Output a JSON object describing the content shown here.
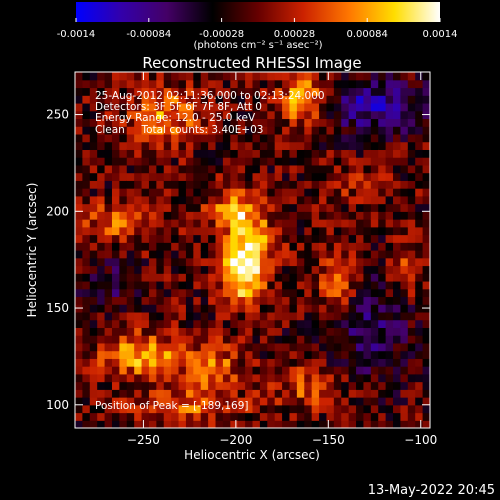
{
  "chart_data": {
    "type": "heatmap",
    "title": "Reconstructed RHESSI Image",
    "colorbar": {
      "ticks": [
        "-0.0014",
        "-0.00084",
        "-0.00028",
        "0.00028",
        "0.00084",
        "0.0014"
      ],
      "tick_values": [
        -0.0014,
        -0.00084,
        -0.00028,
        0.00028,
        0.00084,
        0.0014
      ],
      "range": [
        -0.0014,
        0.0014
      ],
      "unit_label": "(photons cm⁻² s⁻¹ asec⁻²)",
      "colors": [
        "#0000ff",
        "#3300aa",
        "#440066",
        "#000000",
        "#660000",
        "#cc2200",
        "#ff7700",
        "#ffdd00",
        "#ffffff"
      ]
    },
    "xlabel": "Heliocentric X (arcsec)",
    "ylabel": "Heliocentric Y (arcsec)",
    "xlim": [
      -287,
      -95
    ],
    "ylim": [
      88,
      272
    ],
    "xticks": [
      -250,
      -200,
      -150,
      -100
    ],
    "yticks": [
      100,
      150,
      200,
      250
    ],
    "xtick_labels": [
      "−250",
      "−200",
      "−150",
      "−100"
    ],
    "ytick_labels": [
      "100",
      "150",
      "200",
      "250"
    ],
    "annotations": [
      "25-Aug-2012 02:11:36.000 to 02:13:24.000",
      "Detectors: 3F 5F 6F 7F 8F, Att 0",
      "Energy Range: 12.0 - 25.0 keV",
      "Clean     Total counts: 3.40E+03"
    ],
    "peak_label": "Position of Peak = [-189,169]",
    "peak": {
      "x": -189,
      "y": 169
    },
    "sources": [
      {
        "x": -197,
        "y": 167,
        "amp": 1.0,
        "sx": 8,
        "sy": 10
      },
      {
        "x": -200,
        "y": 200,
        "amp": 0.78,
        "sx": 10,
        "sy": 8
      },
      {
        "x": -190,
        "y": 183,
        "amp": 0.72,
        "sx": 8,
        "sy": 8
      },
      {
        "x": -163,
        "y": 258,
        "amp": 0.8,
        "sx": 9,
        "sy": 9
      },
      {
        "x": -238,
        "y": 250,
        "amp": 0.55,
        "sx": 14,
        "sy": 10
      },
      {
        "x": -262,
        "y": 195,
        "amp": 0.55,
        "sx": 14,
        "sy": 6
      },
      {
        "x": -250,
        "y": 126,
        "amp": 0.7,
        "sx": 16,
        "sy": 8
      },
      {
        "x": -212,
        "y": 120,
        "amp": 0.55,
        "sx": 10,
        "sy": 8
      },
      {
        "x": -225,
        "y": 100,
        "amp": 0.5,
        "sx": 20,
        "sy": 6
      },
      {
        "x": -145,
        "y": 160,
        "amp": 0.55,
        "sx": 8,
        "sy": 12
      },
      {
        "x": -160,
        "y": 110,
        "amp": 0.45,
        "sx": 12,
        "sy": 8
      },
      {
        "x": -108,
        "y": 170,
        "amp": 0.4,
        "sx": 6,
        "sy": 10
      },
      {
        "x": -135,
        "y": 215,
        "amp": 0.25,
        "sx": 10,
        "sy": 6
      }
    ],
    "blue_regions": [
      {
        "x": -125,
        "y": 255,
        "amp": 0.6,
        "sx": 20,
        "sy": 10
      },
      {
        "x": -130,
        "y": 140,
        "amp": 0.4,
        "sx": 18,
        "sy": 20
      },
      {
        "x": -270,
        "y": 162,
        "amp": 0.35,
        "sx": 10,
        "sy": 8
      }
    ]
  },
  "footer": {
    "date": "13-May-2022 20:45"
  }
}
